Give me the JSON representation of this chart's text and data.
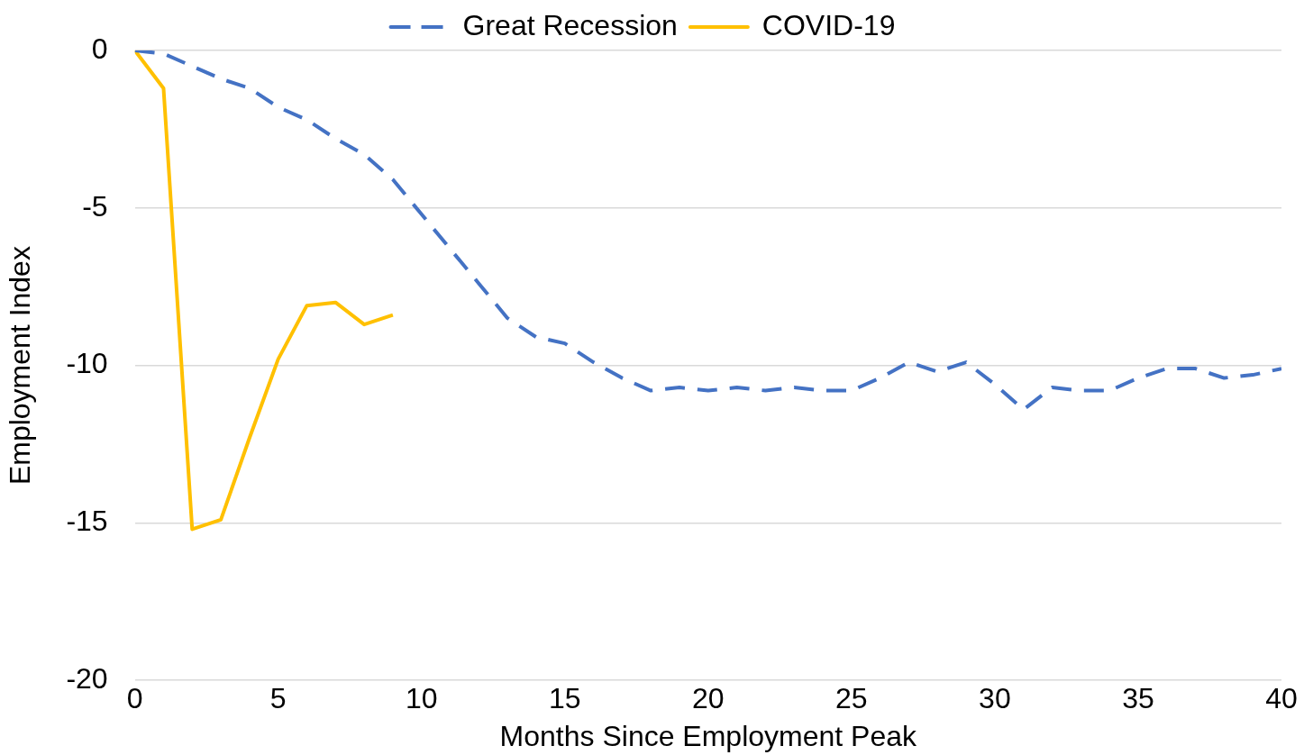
{
  "chart_data": {
    "type": "line",
    "xlabel": "Months Since Employment Peak",
    "ylabel": "Employment Index",
    "x": [
      0,
      1,
      2,
      3,
      4,
      5,
      6,
      7,
      8,
      9,
      10,
      11,
      12,
      13,
      14,
      15,
      16,
      17,
      18,
      19,
      20,
      21,
      22,
      23,
      24,
      25,
      26,
      27,
      28,
      29,
      30,
      31,
      32,
      33,
      34,
      35,
      36,
      37,
      38,
      39,
      40
    ],
    "series": [
      {
        "name": "Great Recession",
        "color": "#4472c4",
        "line_style": "dashed",
        "values": [
          0,
          -0.1,
          -0.5,
          -0.9,
          -1.2,
          -1.8,
          -2.2,
          -2.8,
          -3.3,
          -4.1,
          -5.2,
          -6.3,
          -7.4,
          -8.5,
          -9.1,
          -9.3,
          -9.9,
          -10.4,
          -10.8,
          -10.7,
          -10.8,
          -10.7,
          -10.8,
          -10.7,
          -10.8,
          -10.8,
          -10.4,
          -9.9,
          -10.2,
          -9.9,
          -10.6,
          -11.4,
          -10.7,
          -10.8,
          -10.8,
          -10.4,
          -10.1,
          -10.1,
          -10.4,
          -10.3,
          -10.1
        ]
      },
      {
        "name": "COVID-19",
        "color": "#ffc000",
        "line_style": "solid",
        "x": [
          0,
          1,
          2,
          3,
          4,
          5,
          6,
          7,
          8,
          9
        ],
        "values": [
          0,
          -1.2,
          -15.2,
          -14.9,
          -12.3,
          -9.8,
          -8.1,
          -8.0,
          -8.7,
          -8.4
        ]
      }
    ],
    "xlim": [
      0,
      40
    ],
    "xticks": [
      0,
      5,
      10,
      15,
      20,
      25,
      30,
      35,
      40
    ],
    "ylim": [
      -20,
      0
    ],
    "yticks": [
      -20,
      -15,
      -10,
      -5,
      0
    ],
    "grid": "y",
    "legend": "top",
    "marker": "none"
  }
}
